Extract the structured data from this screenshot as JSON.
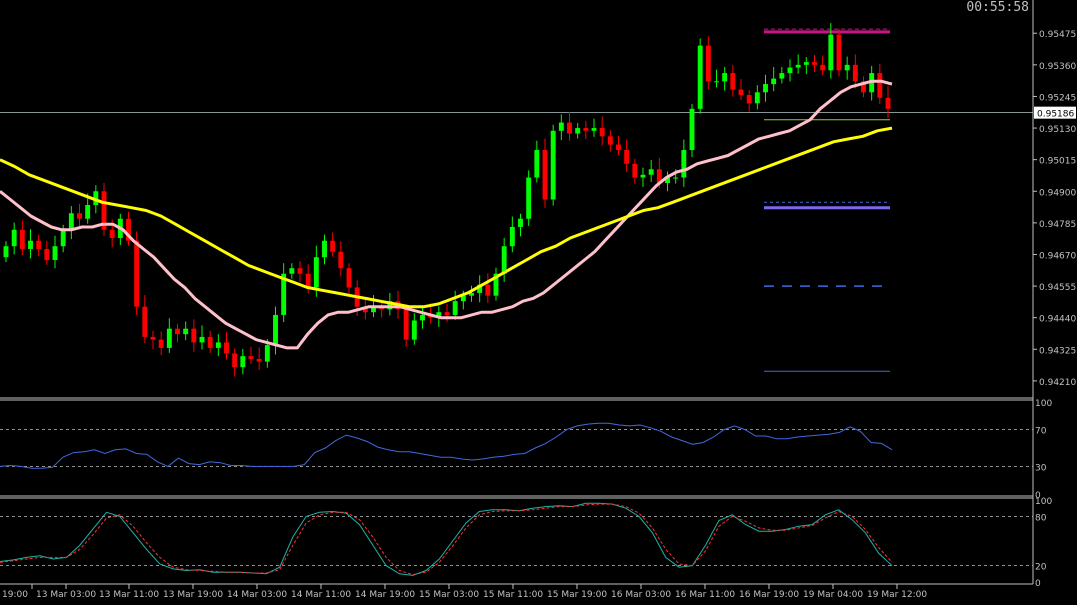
{
  "clock": "00:55:58",
  "chart_data": {
    "type": "candlestick",
    "price_axis": {
      "range": [
        0.94155,
        0.95545
      ],
      "ticks": [
        "0.95475",
        "0.95360",
        "0.95245",
        "0.95130",
        "0.95015",
        "0.94900",
        "0.94785",
        "0.94670",
        "0.94555",
        "0.94440",
        "0.94325",
        "0.94210"
      ],
      "current_price": "0.95186"
    },
    "time_axis": {
      "labels": [
        "19:00",
        "13 Mar 03:00",
        "13 Mar 11:00",
        "13 Mar 19:00",
        "14 Mar 03:00",
        "14 Mar 11:00",
        "14 Mar 19:00",
        "15 Mar 03:00",
        "15 Mar 11:00",
        "15 Mar 19:00",
        "16 Mar 03:00",
        "16 Mar 11:00",
        "16 Mar 19:00",
        "19 Mar 04:00",
        "19 Mar 12:00"
      ]
    },
    "candle_closes": [
      0.947,
      0.9476,
      0.9469,
      0.9472,
      0.9469,
      0.9465,
      0.947,
      0.9476,
      0.9482,
      0.948,
      0.9485,
      0.949,
      0.9476,
      0.9473,
      0.948,
      0.9472,
      0.9448,
      0.9437,
      0.9436,
      0.9433,
      0.944,
      0.9438,
      0.944,
      0.9435,
      0.9437,
      0.9433,
      0.9435,
      0.9431,
      0.9426,
      0.943,
      0.9429,
      0.9428,
      0.9434,
      0.9445,
      0.946,
      0.9462,
      0.946,
      0.9455,
      0.9466,
      0.9472,
      0.9468,
      0.9462,
      0.9455,
      0.9448,
      0.9446,
      0.9448,
      0.9447,
      0.945,
      0.9447,
      0.9436,
      0.9443,
      0.9445,
      0.9444,
      0.9446,
      0.9445,
      0.945,
      0.9452,
      0.9453,
      0.9456,
      0.9452,
      0.946,
      0.947,
      0.9477,
      0.948,
      0.9495,
      0.9505,
      0.9487,
      0.9512,
      0.9515,
      0.9511,
      0.9513,
      0.9512,
      0.9513,
      0.951,
      0.9507,
      0.9505,
      0.95,
      0.9495,
      0.9496,
      0.9498,
      0.9493,
      0.9495,
      0.9495,
      0.9505,
      0.952,
      0.9543,
      0.953,
      0.953,
      0.9533,
      0.9527,
      0.9525,
      0.9522,
      0.9526,
      0.9529,
      0.9531,
      0.9533,
      0.9535,
      0.9536,
      0.9537,
      0.9536,
      0.9534,
      0.9547,
      0.9534,
      0.9536,
      0.953,
      0.9526,
      0.9533,
      0.9524,
      0.952
    ],
    "series": [
      {
        "name": "",
        "color": "#ffc0cb",
        "values": [
          0.949,
          0.9487,
          0.9484,
          0.9481,
          0.9479,
          0.9477,
          0.9476,
          0.9476,
          0.9477,
          0.9477,
          0.9478,
          0.9478,
          0.9476,
          0.9472,
          0.9469,
          0.9466,
          0.9462,
          0.9458,
          0.9455,
          0.9451,
          0.9448,
          0.9445,
          0.9442,
          0.944,
          0.9438,
          0.9436,
          0.9435,
          0.9434,
          0.9433,
          0.9433,
          0.9438,
          0.9442,
          0.9445,
          0.9446,
          0.9446,
          0.9447,
          0.9448,
          0.9448,
          0.9448,
          0.9448,
          0.9447,
          0.9446,
          0.9445,
          0.9444,
          0.9444,
          0.9444,
          0.9445,
          0.9446,
          0.9446,
          0.9447,
          0.9448,
          0.945,
          0.9451,
          0.9453,
          0.9456,
          0.9459,
          0.9462,
          0.9465,
          0.9468,
          0.9472,
          0.9476,
          0.948,
          0.9484,
          0.9488,
          0.9492,
          0.9495,
          0.9497,
          0.9498,
          0.95,
          0.9501,
          0.9502,
          0.9503,
          0.9505,
          0.9507,
          0.9509,
          0.951,
          0.9511,
          0.9512,
          0.9514,
          0.9516,
          0.952,
          0.9523,
          0.9526,
          0.9528,
          0.9529,
          0.953,
          0.953,
          0.9529
        ]
      },
      {
        "name": "",
        "color": "#ffff00",
        "values": [
          0.95015,
          0.9499,
          0.9496,
          0.9494,
          0.9492,
          0.949,
          0.9488,
          0.9486,
          0.9485,
          0.9484,
          0.9483,
          0.9481,
          0.9478,
          0.9475,
          0.9472,
          0.9469,
          0.9466,
          0.9463,
          0.9461,
          0.9459,
          0.9457,
          0.9455,
          0.9454,
          0.9453,
          0.9452,
          0.9451,
          0.945,
          0.9449,
          0.9448,
          0.9448,
          0.9449,
          0.9451,
          0.9453,
          0.9456,
          0.9459,
          0.9462,
          0.9465,
          0.9468,
          0.947,
          0.9473,
          0.9475,
          0.9477,
          0.9479,
          0.9481,
          0.9483,
          0.9484,
          0.9486,
          0.9488,
          0.949,
          0.9492,
          0.9494,
          0.9496,
          0.9498,
          0.95,
          0.9502,
          0.9504,
          0.9506,
          0.9508,
          0.9509,
          0.951,
          0.9512,
          0.9513
        ]
      }
    ],
    "level_lines": [
      0.9549,
      0.9548,
      0.9516,
      0.9486,
      0.9484,
      0.94555,
      0.94245
    ],
    "indicators": [
      {
        "ticks": [
          "100",
          "70",
          "30",
          "0"
        ],
        "levels": [
          70,
          30
        ],
        "range": [
          0,
          100
        ],
        "lines": [
          {
            "color": "#4169e1",
            "values": [
              30,
              31,
              30,
              28,
              28,
              29,
              40,
              45,
              46,
              48,
              44,
              48,
              49,
              44,
              43,
              35,
              30,
              39,
              33,
              32,
              35,
              34,
              31,
              31,
              30,
              30,
              30,
              30,
              30,
              32,
              45,
              50,
              58,
              64,
              61,
              57,
              51,
              48,
              46,
              46,
              44,
              42,
              40,
              40,
              38,
              37,
              38,
              40,
              41,
              43,
              44,
              50,
              55,
              62,
              70,
              74,
              76,
              77,
              77,
              75,
              74,
              75,
              72,
              68,
              62,
              58,
              54,
              56,
              62,
              70,
              74,
              70,
              63,
              63,
              60,
              60,
              62,
              63,
              64,
              65,
              67,
              73,
              68,
              56,
              55,
              48
            ]
          }
        ]
      },
      {
        "ticks": [
          "100",
          "80",
          "20",
          "0"
        ],
        "levels": [
          80,
          20
        ],
        "range": [
          0,
          100
        ],
        "lines": [
          {
            "color": "#20b2aa",
            "values": [
              25,
              27,
              30,
              32,
              28,
              30,
              45,
              65,
              85,
              80,
              60,
              40,
              22,
              16,
              14,
              15,
              12,
              12,
              12,
              11,
              10,
              18,
              55,
              80,
              85,
              86,
              84,
              70,
              45,
              20,
              10,
              8,
              14,
              28,
              50,
              72,
              86,
              88,
              88,
              87,
              90,
              92,
              93,
              92,
              96,
              96,
              95,
              90,
              80,
              60,
              30,
              18,
              20,
              45,
              75,
              82,
              70,
              62,
              62,
              64,
              68,
              70,
              82,
              88,
              76,
              60,
              35,
              20
            ]
          },
          {
            "color": "#ff3030",
            "values": [
              24,
              26,
              28,
              30,
              30,
              30,
              40,
              58,
              78,
              82,
              68,
              48,
              30,
              18,
              15,
              14,
              13,
              12,
              12,
              11,
              11,
              15,
              45,
              72,
              82,
              85,
              85,
              76,
              55,
              30,
              14,
              9,
              12,
              24,
              44,
              66,
              82,
              86,
              87,
              87,
              88,
              90,
              92,
              92,
              94,
              95,
              95,
              92,
              84,
              66,
              40,
              22,
              20,
              38,
              68,
              80,
              74,
              66,
              63,
              63,
              66,
              69,
              78,
              86,
              80,
              64,
              42,
              24
            ]
          }
        ]
      }
    ]
  }
}
